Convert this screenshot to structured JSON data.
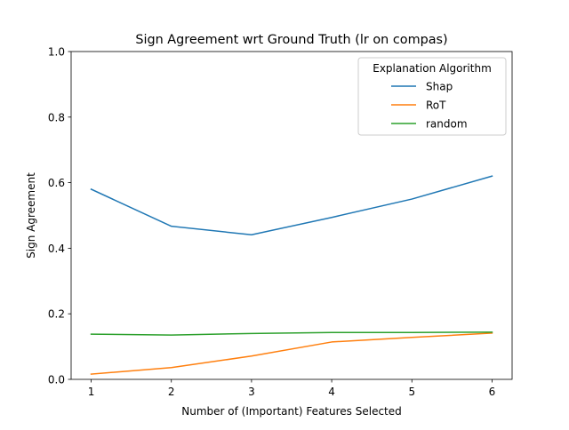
{
  "chart_data": {
    "type": "line",
    "title": "Sign Agreement wrt Ground Truth (lr on compas)",
    "xlabel": "Number of (Important) Features Selected",
    "ylabel": "Sign Agreement",
    "x": [
      1,
      2,
      3,
      4,
      5,
      6
    ],
    "xticks": [
      "1",
      "2",
      "3",
      "4",
      "5",
      "6"
    ],
    "yticks": [
      "0.0",
      "0.2",
      "0.4",
      "0.6",
      "0.8",
      "1.0"
    ],
    "xlim": [
      0.75,
      6.25
    ],
    "ylim": [
      0,
      1
    ],
    "grid": false,
    "legend": {
      "title": "Explanation Algorithm",
      "placement": "top-right"
    },
    "series": [
      {
        "name": "Shap",
        "color": "#1f77b4",
        "values": [
          0.58,
          0.467,
          0.441,
          0.494,
          0.55,
          0.62
        ]
      },
      {
        "name": "RoT",
        "color": "#ff7f0e",
        "values": [
          0.016,
          0.036,
          0.071,
          0.114,
          0.128,
          0.141
        ]
      },
      {
        "name": "random",
        "color": "#2ca02c",
        "values": [
          0.138,
          0.135,
          0.14,
          0.143,
          0.143,
          0.144
        ]
      }
    ]
  }
}
